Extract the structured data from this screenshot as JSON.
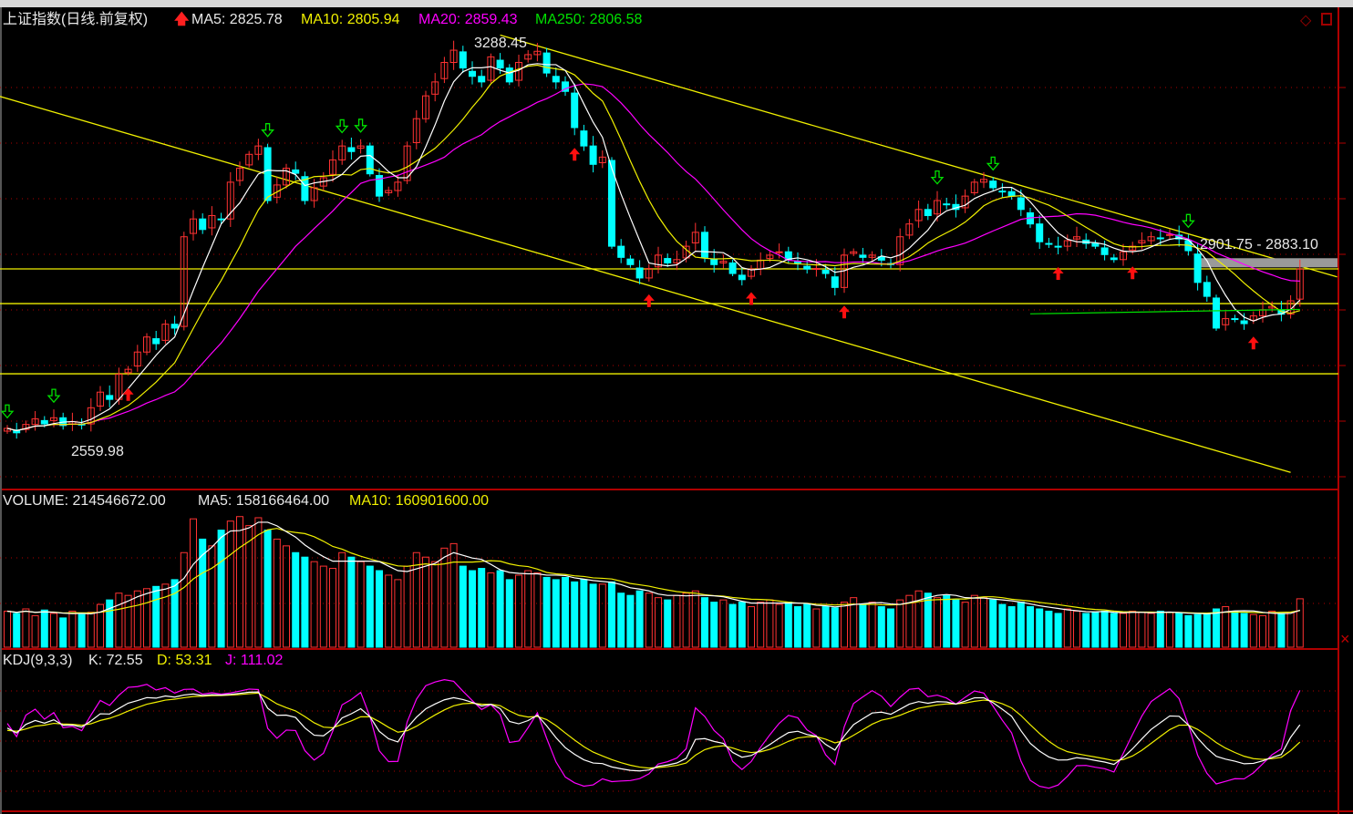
{
  "header": {
    "title": "上证指数(日线.前复权)",
    "ma5": "MA5: 2825.78",
    "ma10": "MA10: 2805.94",
    "ma20": "MA20: 2859.43",
    "ma250": "MA250: 2806.58"
  },
  "volume_header": {
    "volume": "VOLUME: 214546672.00",
    "ma5": "MA5: 158166464.00",
    "ma10": "MA10: 160901600.00"
  },
  "kdj_header": {
    "name": "KDJ(9,3,3)",
    "k": "K: 72.55",
    "d": "D: 53.31",
    "j": "J: 111.02"
  },
  "annotations": {
    "high_label": "3288.45",
    "low_label": "2559.98",
    "range_label": "2901.75 - 2883.10"
  },
  "colors": {
    "up": "#ff3232",
    "down": "#00ffff",
    "ma5": "#ffffff",
    "ma10": "#f0f000",
    "ma20": "#ff00ff",
    "ma250": "#00e000",
    "grid": "#b00000",
    "trendline": "#f0f000"
  },
  "chart_data": {
    "type": "candlestick",
    "price_range": [
      2500,
      3310
    ],
    "close": [
      2593,
      2585,
      2600,
      2610,
      2601,
      2612,
      2598,
      2605,
      2601,
      2630,
      2658,
      2645,
      2690,
      2699,
      2730,
      2757,
      2745,
      2780,
      2773,
      2937,
      2969,
      2950,
      2975,
      2969,
      3035,
      3060,
      3085,
      3100,
      3002,
      3030,
      3060,
      3051,
      3002,
      3025,
      3043,
      3075,
      3100,
      3090,
      3100,
      3050,
      3010,
      3020,
      3035,
      3100,
      3149,
      3190,
      3215,
      3250,
      3272,
      3240,
      3225,
      3215,
      3260,
      3240,
      3215,
      3250,
      3264,
      3270,
      3231,
      3215,
      3198,
      3133,
      3100,
      3067,
      3080,
      2920,
      2900,
      2887,
      2863,
      2880,
      2904,
      2890,
      2896,
      2920,
      2945,
      2900,
      2887,
      2890,
      2871,
      2860,
      2879,
      2895,
      2904,
      2910,
      2896,
      2890,
      2879,
      2880,
      2871,
      2846,
      2904,
      2910,
      2900,
      2904,
      2895,
      2887,
      2937,
      2960,
      2986,
      2975,
      3002,
      2995,
      2986,
      3010,
      3035,
      3040,
      3025,
      3018,
      3010,
      2986,
      2960,
      2928,
      2925,
      2920,
      2930,
      2937,
      2925,
      2920,
      2905,
      2896,
      2910,
      2920,
      2930,
      2937,
      2935,
      2940,
      2933,
      2912,
      2855,
      2830,
      2773,
      2790,
      2789,
      2781,
      2795,
      2806,
      2812,
      2798,
      2822,
      2879
    ],
    "volume_millions": [
      160,
      150,
      170,
      140,
      165,
      150,
      130,
      160,
      145,
      155,
      190,
      210,
      240,
      230,
      250,
      260,
      270,
      280,
      300,
      420,
      570,
      480,
      450,
      520,
      560,
      580,
      540,
      575,
      520,
      480,
      450,
      420,
      400,
      380,
      360,
      350,
      420,
      400,
      380,
      360,
      340,
      320,
      300,
      360,
      420,
      400,
      380,
      440,
      460,
      360,
      340,
      350,
      330,
      340,
      300,
      320,
      340,
      330,
      310,
      300,
      310,
      290,
      300,
      280,
      280,
      290,
      240,
      230,
      250,
      240,
      220,
      210,
      230,
      240,
      250,
      220,
      200,
      210,
      190,
      200,
      180,
      200,
      210,
      190,
      200,
      180,
      190,
      170,
      180,
      175,
      200,
      220,
      190,
      200,
      180,
      170,
      210,
      230,
      250,
      240,
      220,
      230,
      210,
      200,
      230,
      220,
      210,
      190,
      180,
      200,
      180,
      170,
      160,
      150,
      170,
      160,
      150,
      155,
      160,
      150,
      150,
      160,
      155,
      150,
      160,
      155,
      150,
      140,
      145,
      150,
      170,
      180,
      160,
      150,
      145,
      140,
      160,
      150,
      155,
      215
    ],
    "ma250_level": 2806.58,
    "buy_signal_indices": [
      13,
      61,
      69,
      80,
      90,
      113,
      121,
      134
    ],
    "sell_signal_indices": [
      0,
      5,
      28,
      36,
      38,
      100,
      106,
      127
    ],
    "horizontal_lines": [
      2879.3,
      2817,
      2691
    ],
    "trend_lines": [
      {
        "from_index": 53,
        "from_price": 3299,
        "to_index": 143,
        "to_price": 2865
      },
      {
        "from_index": -1,
        "from_price": 3190,
        "to_index": 138,
        "to_price": 2514
      }
    ],
    "range_band": [
      2901.75,
      2883.1
    ]
  }
}
